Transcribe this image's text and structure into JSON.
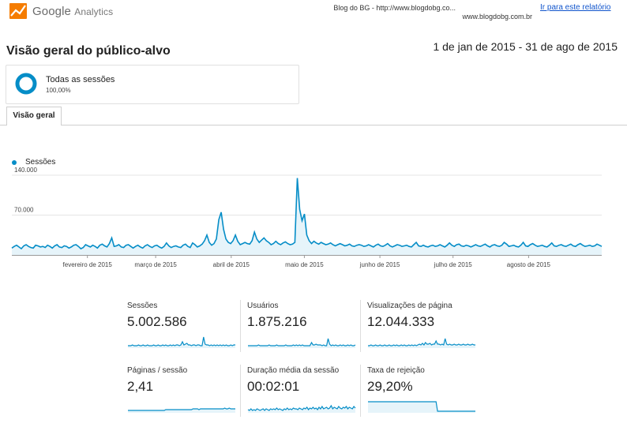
{
  "header": {
    "brand_google": "Google",
    "brand_analytics": "Analytics",
    "site_line1": "Blog do BG - http://www.blogdobg.co...",
    "site_line2": "www.blogdobg.com.br",
    "report_link": "Ir para este relatório",
    "page_title": "Visão geral do público-alvo",
    "date_range": "1 de jan de 2015 - 31 de ago de 2015"
  },
  "segment": {
    "name": "Todas as sessões",
    "percent": "100,00%"
  },
  "tabs": [
    {
      "label": "Visão geral",
      "active": true
    }
  ],
  "colors": {
    "accent": "#058dc7",
    "area": "#e6f4fa",
    "logo_orange": "#f57c00",
    "logo_yellow": "#ffc107"
  },
  "icons": {
    "logo": "google-analytics-logo-icon",
    "segment": "segment-ring-icon"
  },
  "chart_data": {
    "type": "area",
    "legend": [
      "Sessões"
    ],
    "ytick_labels": [
      "140.000",
      "70.000"
    ],
    "ylim": [
      0,
      140000
    ],
    "xtick_labels": [
      "fevereiro de 2015",
      "março de 2015",
      "abril de 2015",
      "maio de 2015",
      "junho de 2015",
      "julho de 2015",
      "agosto de 2015"
    ],
    "x_range": [
      "2015-01-01",
      "2015-08-31"
    ],
    "series": [
      {
        "name": "Sessões",
        "values": [
          12000,
          15000,
          17000,
          14000,
          11000,
          16000,
          18000,
          15000,
          13000,
          12000,
          17000,
          16000,
          14000,
          15000,
          13000,
          17000,
          15000,
          12000,
          16000,
          18000,
          14000,
          13000,
          16000,
          15000,
          12000,
          14000,
          17000,
          18000,
          15000,
          11000,
          13000,
          18000,
          16000,
          14000,
          17000,
          15000,
          12000,
          17000,
          19000,
          16000,
          14000,
          20000,
          30000,
          15000,
          16000,
          18000,
          14000,
          13000,
          17000,
          18000,
          15000,
          12000,
          15000,
          17000,
          14000,
          12000,
          16000,
          18000,
          15000,
          13000,
          16000,
          17000,
          14000,
          12000,
          15000,
          21000,
          16000,
          13000,
          15000,
          16000,
          14000,
          13000,
          17000,
          19000,
          15000,
          13000,
          21000,
          18000,
          14000,
          16000,
          19000,
          25000,
          35000,
          22000,
          17000,
          20000,
          28000,
          62000,
          75000,
          45000,
          28000,
          22000,
          20000,
          25000,
          35000,
          24000,
          18000,
          20000,
          22000,
          20000,
          19000,
          25000,
          40000,
          28000,
          22000,
          26000,
          30000,
          25000,
          22000,
          18000,
          20000,
          24000,
          20000,
          18000,
          21000,
          23000,
          20000,
          18000,
          19000,
          22000,
          135000,
          80000,
          60000,
          72000,
          35000,
          25000,
          20000,
          24000,
          21000,
          19000,
          22000,
          20000,
          18000,
          19000,
          21000,
          18000,
          16000,
          18000,
          20000,
          18000,
          16000,
          17000,
          19000,
          16000,
          15000,
          17000,
          18000,
          17000,
          15000,
          16000,
          18000,
          16000,
          14000,
          17000,
          19000,
          16000,
          15000,
          17000,
          20000,
          16000,
          14000,
          16000,
          18000,
          17000,
          15000,
          16000,
          17000,
          15000,
          14000,
          18000,
          22000,
          16000,
          15000,
          17000,
          15000,
          14000,
          16000,
          17000,
          15000,
          16000,
          18000,
          16000,
          14000,
          17000,
          21000,
          17000,
          15000,
          18000,
          19000,
          16000,
          15000,
          17000,
          16000,
          14000,
          16000,
          18000,
          16000,
          15000,
          17000,
          19000,
          16000,
          14000,
          17000,
          18000,
          16000,
          15000,
          17000,
          22000,
          19000,
          15000,
          16000,
          17000,
          15000,
          14000,
          17000,
          22000,
          16000,
          15000,
          18000,
          20000,
          17000,
          15000,
          16000,
          17000,
          15000,
          14000,
          17000,
          21000,
          16000,
          15000,
          17000,
          18000,
          16000,
          15000,
          17000,
          19000,
          16000,
          15000,
          18000,
          20000,
          17000,
          15000,
          16000,
          17000,
          15000,
          16000,
          19000,
          17000,
          15000
        ]
      }
    ]
  },
  "metrics": [
    {
      "label": "Sessões",
      "value": "5.002.586",
      "spark": [
        3,
        3,
        3,
        4,
        3,
        3,
        3,
        4,
        3,
        3,
        4,
        3,
        3,
        4,
        3,
        3,
        3,
        4,
        3,
        3,
        4,
        3,
        3,
        4,
        3,
        4,
        3,
        3,
        4,
        3,
        4,
        3,
        4,
        4,
        3,
        4,
        8,
        4,
        5,
        6,
        4,
        4,
        3,
        4,
        4,
        3,
        4,
        4,
        3,
        3,
        14,
        5,
        4,
        4,
        3,
        4,
        3,
        4,
        3,
        4,
        3,
        4,
        3,
        4,
        3,
        4,
        3,
        3,
        4,
        3,
        4,
        4
      ]
    },
    {
      "label": "Usuários",
      "value": "1.875.216",
      "spark": [
        3,
        3,
        3,
        3,
        3,
        3,
        3,
        4,
        3,
        3,
        3,
        3,
        3,
        3,
        4,
        3,
        3,
        3,
        3,
        4,
        3,
        3,
        3,
        3,
        3,
        4,
        3,
        3,
        3,
        3,
        4,
        3,
        4,
        3,
        4,
        3,
        4,
        3,
        3,
        3,
        3,
        3,
        7,
        4,
        4,
        5,
        4,
        4,
        4,
        3,
        4,
        3,
        3,
        12,
        5,
        3,
        4,
        3,
        4,
        3,
        3,
        4,
        3,
        4,
        3,
        3,
        4,
        3,
        4,
        3,
        3,
        4
      ]
    },
    {
      "label": "Visualizações de página",
      "value": "12.044.333",
      "spark": [
        3,
        3,
        4,
        3,
        3,
        4,
        3,
        3,
        4,
        3,
        3,
        4,
        3,
        3,
        4,
        3,
        3,
        4,
        3,
        4,
        3,
        3,
        4,
        3,
        4,
        3,
        3,
        4,
        3,
        4,
        3,
        4,
        3,
        4,
        5,
        4,
        6,
        4,
        7,
        5,
        5,
        6,
        4,
        5,
        5,
        9,
        5,
        5,
        4,
        5,
        4,
        12,
        5,
        4,
        5,
        4,
        4,
        5,
        4,
        4,
        5,
        4,
        4,
        5,
        4,
        4,
        5,
        4,
        4,
        5,
        4,
        4
      ]
    },
    {
      "label": "Páginas / sessão",
      "value": "2,41",
      "spark": [
        3,
        3,
        3,
        3,
        3,
        3,
        3,
        3,
        3,
        3,
        3,
        3,
        3,
        3,
        3,
        3,
        3,
        3,
        3,
        3,
        3,
        3,
        3,
        3,
        3,
        4,
        4,
        4,
        4,
        4,
        4,
        4,
        4,
        4,
        4,
        4,
        4,
        4,
        4,
        4,
        4,
        4,
        4,
        5,
        5,
        5,
        5,
        4,
        5,
        5,
        5,
        5,
        5,
        5,
        5,
        5,
        5,
        5,
        5,
        5,
        5,
        5,
        5,
        5,
        6,
        5,
        5,
        6,
        5,
        5,
        5,
        5
      ]
    },
    {
      "label": "Duração média da sessão",
      "value": "00:02:01",
      "spark": [
        4,
        3,
        5,
        3,
        4,
        3,
        5,
        4,
        3,
        4,
        5,
        3,
        5,
        4,
        3,
        5,
        4,
        5,
        4,
        6,
        4,
        5,
        4,
        3,
        5,
        4,
        6,
        4,
        5,
        4,
        6,
        5,
        5,
        4,
        6,
        5,
        4,
        6,
        5,
        7,
        4,
        6,
        5,
        7,
        5,
        6,
        4,
        7,
        5,
        8,
        5,
        6,
        7,
        5,
        6,
        9,
        5,
        7,
        6,
        5,
        8,
        6,
        5,
        7,
        6,
        8,
        5,
        7,
        6,
        5,
        8,
        6
      ]
    },
    {
      "label": "Taxa de rejeição",
      "value": "29,20%",
      "spark": [
        14,
        14,
        14,
        14,
        14,
        14,
        14,
        14,
        14,
        14,
        14,
        14,
        14,
        14,
        14,
        14,
        14,
        14,
        14,
        14,
        14,
        14,
        14,
        14,
        14,
        14,
        14,
        14,
        14,
        14,
        14,
        14,
        14,
        14,
        14,
        14,
        14,
        14,
        14,
        14,
        14,
        14,
        14,
        14,
        14,
        14,
        2,
        2,
        2,
        2,
        2,
        2,
        2,
        2,
        2,
        2,
        2,
        2,
        2,
        2,
        2,
        2,
        2,
        2,
        2,
        2,
        2,
        2,
        2,
        2,
        2,
        2
      ]
    }
  ]
}
